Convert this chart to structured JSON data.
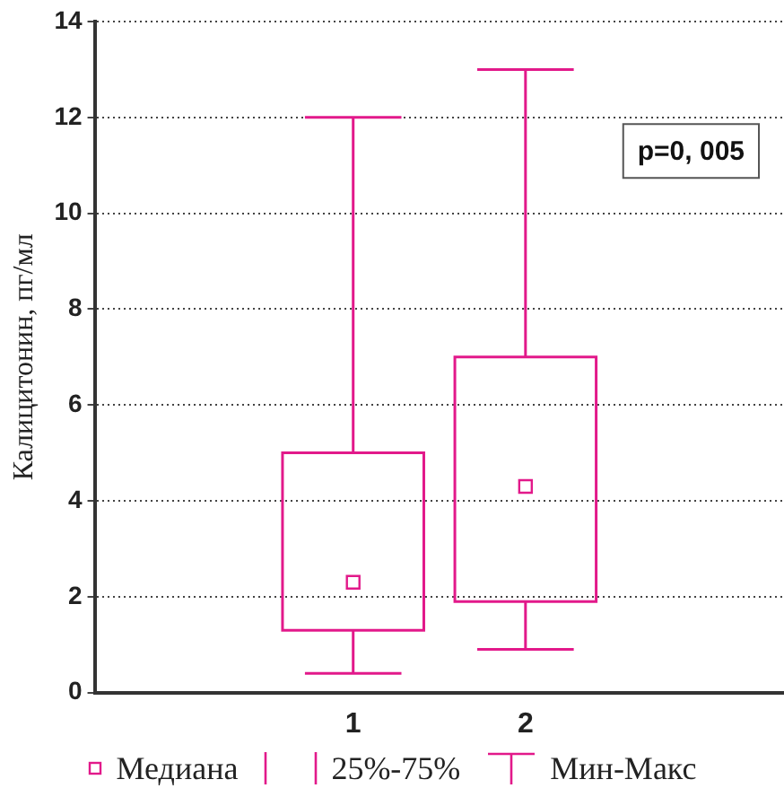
{
  "chart_data": {
    "type": "box",
    "ylabel": "Калицитонин, пг/мл",
    "categories": [
      "1",
      "2"
    ],
    "boxes": [
      {
        "low": 0.4,
        "q1": 1.3,
        "median": 2.3,
        "q3": 5.0,
        "high": 12
      },
      {
        "low": 0.9,
        "q1": 1.9,
        "median": 4.3,
        "q3": 7.0,
        "high": 13
      }
    ],
    "color": "#e2198a",
    "ylim": [
      0,
      14
    ],
    "yticks": [
      0,
      2,
      4,
      6,
      8,
      10,
      12,
      14
    ],
    "grid": "y",
    "annotations": [
      "p=0, 005",
      "Медиана",
      "25%-75%",
      "Мин-Макс"
    ]
  }
}
